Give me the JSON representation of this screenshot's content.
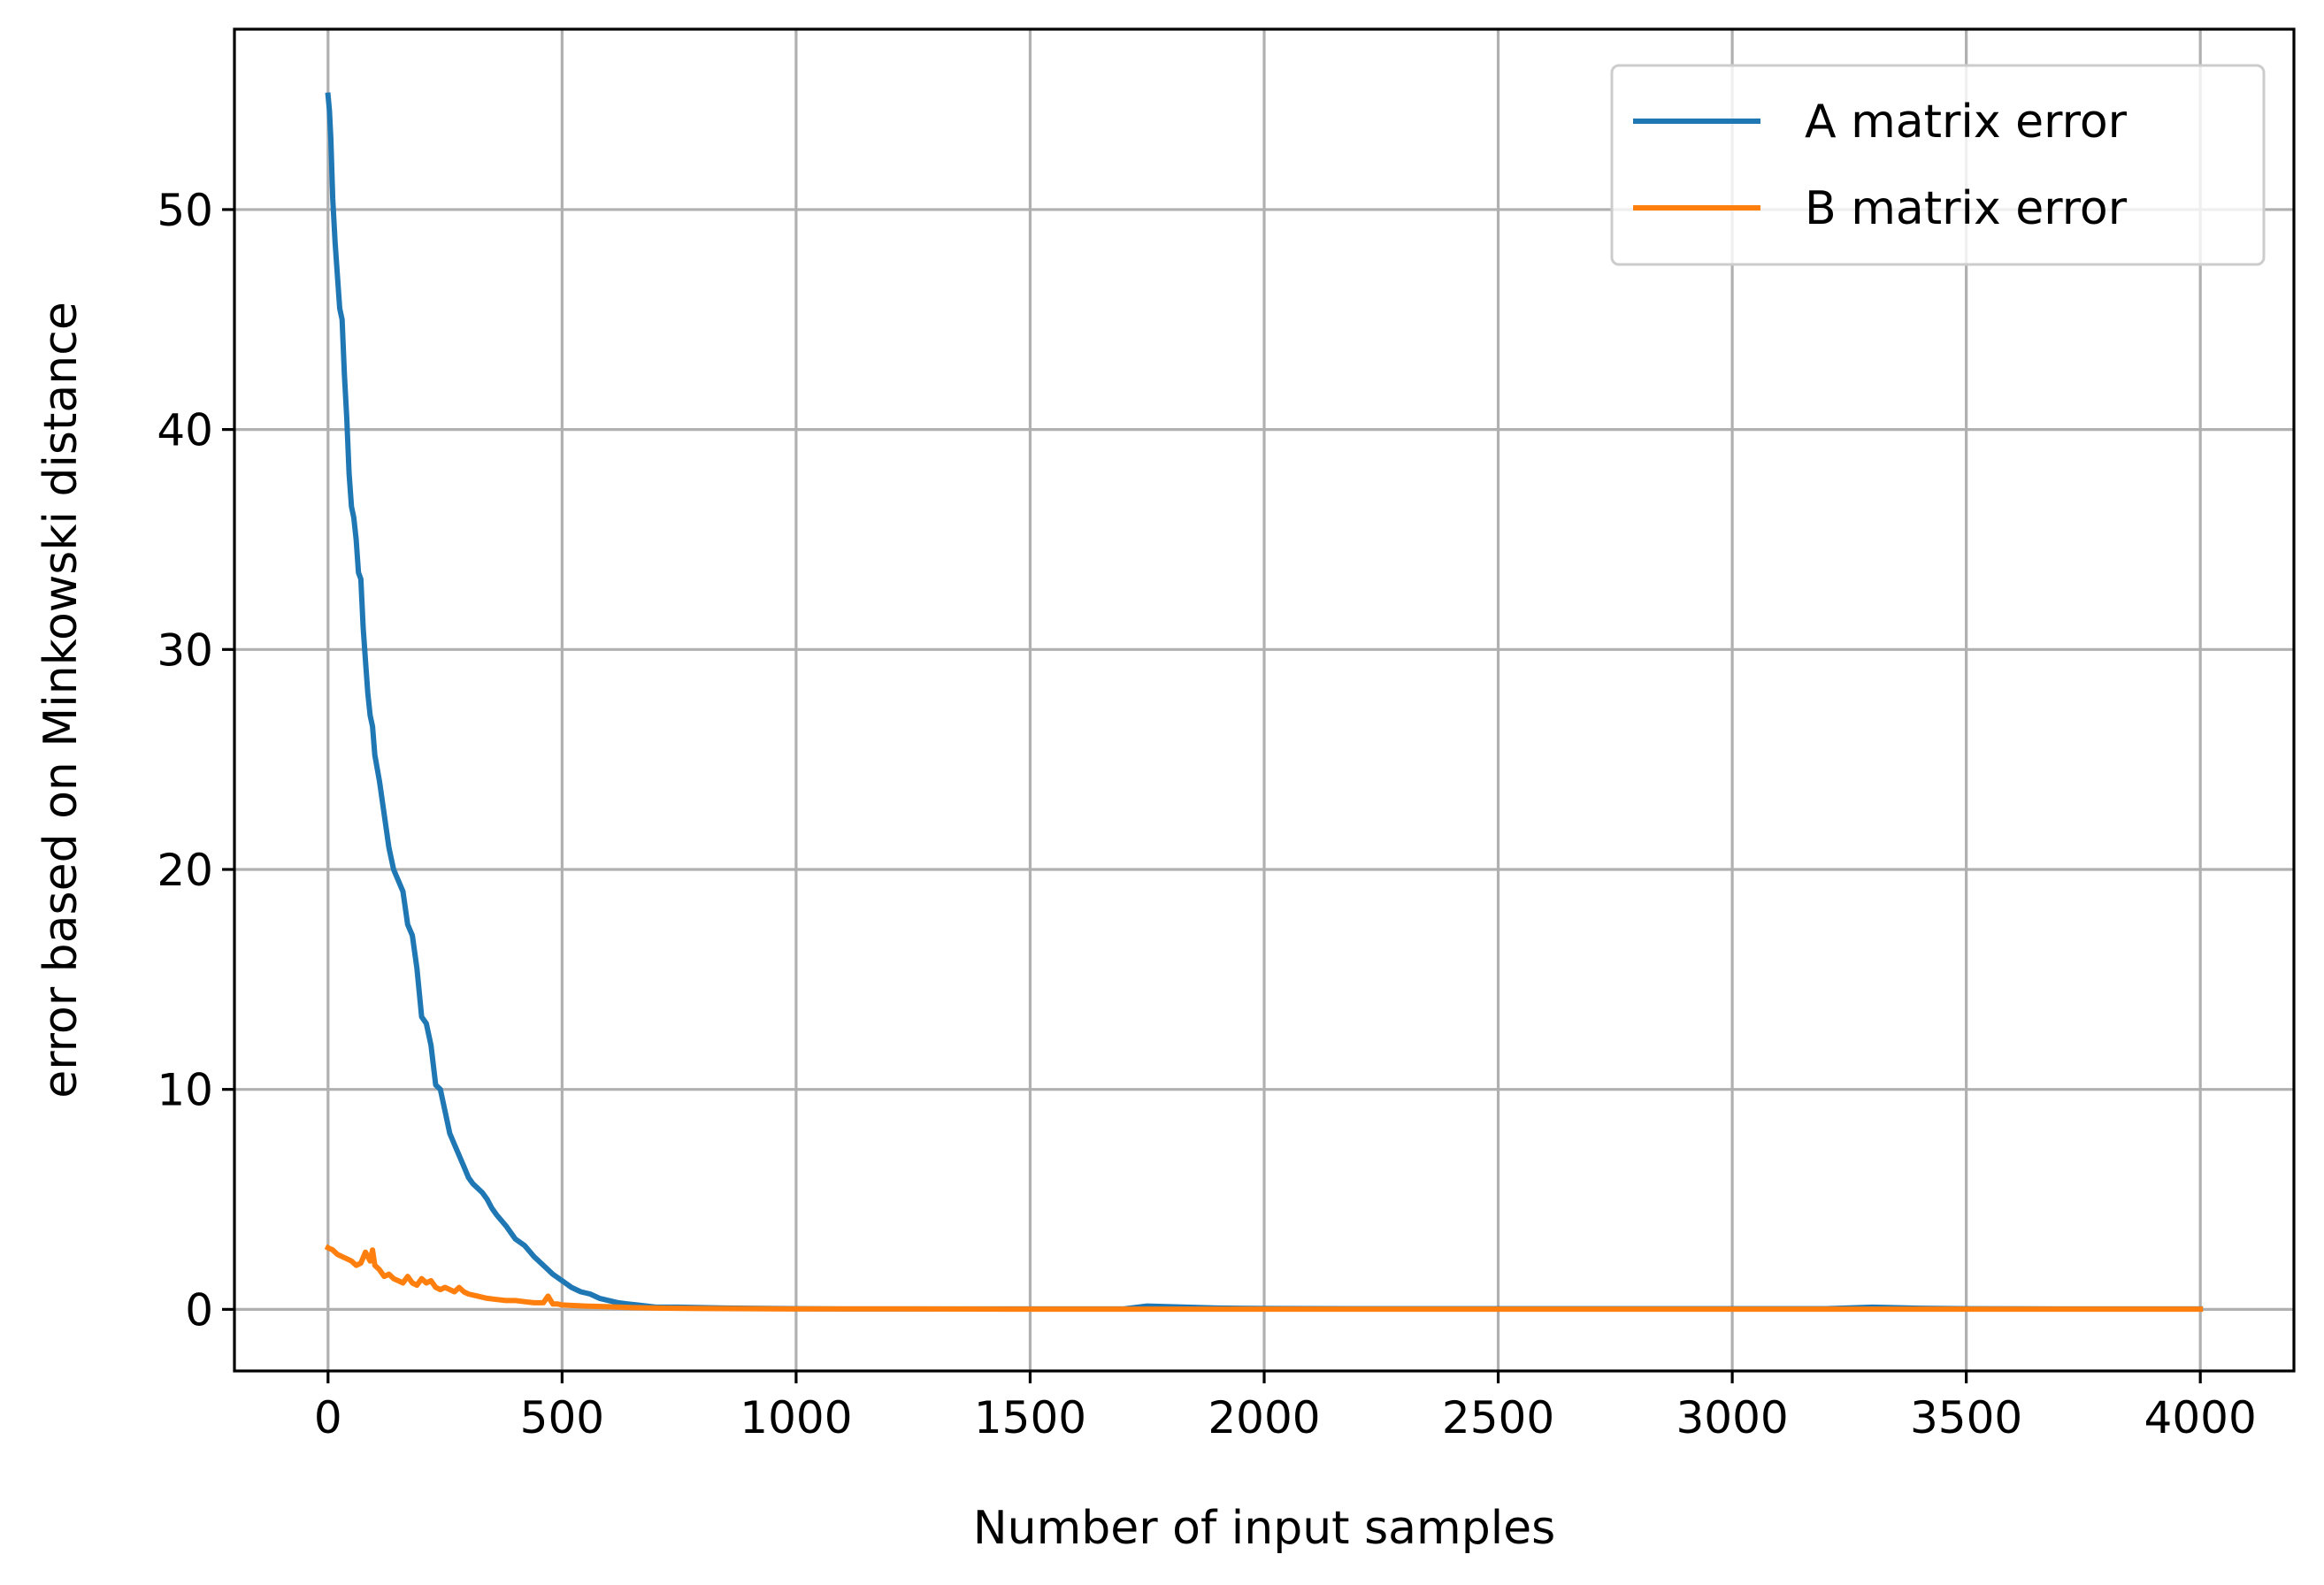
{
  "chart_data": {
    "type": "line",
    "title": "",
    "xlabel": "Number of input samples",
    "ylabel": "error based on Minkowski distance",
    "xlim": [
      -200,
      4200
    ],
    "ylim": [
      -2.8,
      58.2
    ],
    "xticks": [
      0,
      500,
      1000,
      1500,
      2000,
      2500,
      3000,
      3500,
      4000
    ],
    "yticks": [
      0,
      10,
      20,
      30,
      40,
      50
    ],
    "grid": true,
    "legend_position": "top-right",
    "series": [
      {
        "name": "A matrix error",
        "color": "#1f77b4",
        "x": [
          0,
          3,
          6,
          10,
          15,
          20,
          25,
          30,
          35,
          40,
          45,
          50,
          55,
          60,
          65,
          70,
          75,
          80,
          85,
          90,
          95,
          100,
          110,
          120,
          130,
          140,
          150,
          160,
          170,
          180,
          190,
          200,
          210,
          220,
          230,
          240,
          250,
          260,
          270,
          280,
          290,
          300,
          310,
          320,
          330,
          340,
          350,
          360,
          380,
          400,
          420,
          440,
          460,
          480,
          500,
          520,
          540,
          560,
          580,
          600,
          620,
          640,
          660,
          680,
          700,
          750,
          800,
          850,
          900,
          950,
          1000,
          1100,
          1200,
          1300,
          1400,
          1500,
          1600,
          1700,
          1750,
          1800,
          1900,
          2000,
          2200,
          2500,
          2800,
          3000,
          3200,
          3300,
          3400,
          3500,
          3700,
          3900,
          4000
        ],
        "y": [
          55.2,
          54.5,
          53.2,
          50.5,
          48.5,
          47.0,
          45.5,
          45.0,
          42.5,
          40.5,
          38.0,
          36.5,
          36.0,
          35.0,
          33.5,
          33.2,
          31.0,
          29.5,
          28.0,
          27.0,
          26.5,
          25.2,
          24.0,
          22.5,
          21.0,
          20.0,
          19.5,
          19.0,
          17.5,
          17.0,
          15.5,
          13.3,
          13.0,
          12.0,
          10.2,
          10.0,
          9.0,
          8.0,
          7.5,
          7.0,
          6.5,
          6.0,
          5.7,
          5.5,
          5.3,
          5.0,
          4.6,
          4.3,
          3.8,
          3.2,
          2.9,
          2.4,
          2.0,
          1.6,
          1.3,
          1.0,
          0.8,
          0.7,
          0.5,
          0.4,
          0.3,
          0.25,
          0.2,
          0.15,
          0.1,
          0.1,
          0.08,
          0.06,
          0.05,
          0.04,
          0.03,
          0.02,
          0.02,
          0.02,
          0.02,
          0.02,
          0.02,
          0.02,
          0.15,
          0.12,
          0.06,
          0.04,
          0.03,
          0.03,
          0.03,
          0.03,
          0.03,
          0.1,
          0.05,
          0.03,
          0.02,
          0.02,
          0.02
        ]
      },
      {
        "name": "B matrix error",
        "color": "#ff7f0e",
        "x": [
          0,
          10,
          20,
          30,
          40,
          50,
          60,
          70,
          80,
          90,
          95,
          100,
          110,
          120,
          130,
          140,
          150,
          160,
          170,
          180,
          190,
          200,
          210,
          220,
          230,
          240,
          250,
          260,
          270,
          280,
          290,
          300,
          320,
          340,
          360,
          380,
          400,
          420,
          440,
          460,
          470,
          480,
          490,
          500,
          520,
          550,
          600,
          650,
          700,
          800,
          900,
          1000,
          1200,
          1500,
          2000,
          2500,
          3000,
          3500,
          4000
        ],
        "y": [
          2.8,
          2.7,
          2.5,
          2.4,
          2.3,
          2.2,
          2.0,
          2.1,
          2.6,
          2.2,
          2.7,
          2.0,
          1.8,
          1.5,
          1.6,
          1.4,
          1.3,
          1.2,
          1.5,
          1.2,
          1.1,
          1.4,
          1.2,
          1.3,
          1.0,
          0.9,
          1.0,
          0.9,
          0.8,
          1.0,
          0.8,
          0.7,
          0.6,
          0.5,
          0.45,
          0.4,
          0.4,
          0.35,
          0.3,
          0.3,
          0.6,
          0.25,
          0.25,
          0.2,
          0.18,
          0.15,
          0.12,
          0.08,
          0.06,
          0.04,
          0.03,
          0.02,
          0.02,
          0.01,
          0.01,
          0.01,
          0.01,
          0.01,
          0.01
        ]
      }
    ]
  }
}
